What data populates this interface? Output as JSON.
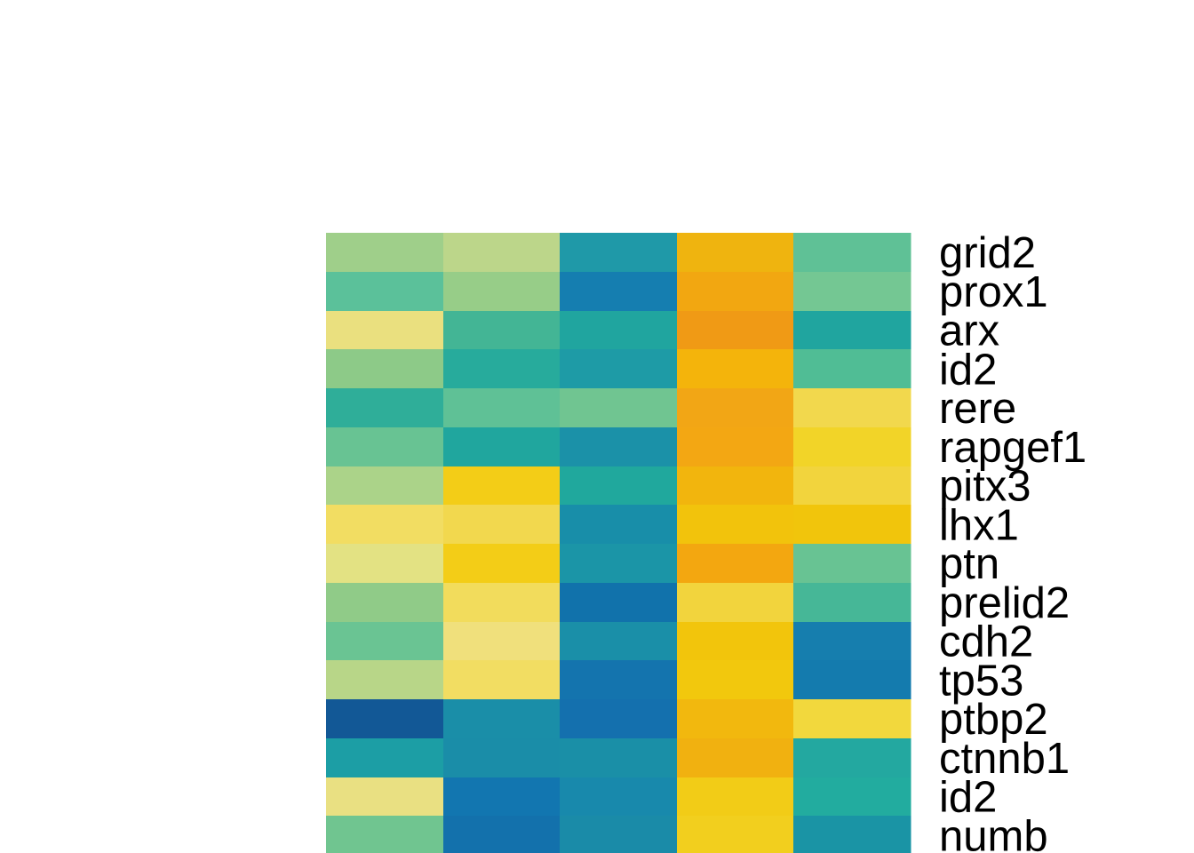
{
  "chart_data": {
    "type": "heatmap",
    "rows": [
      "grid2",
      "prox1",
      "arx",
      "id2",
      "rere",
      "rapgef1",
      "pitx3",
      "lhx1",
      "ptn",
      "prelid2",
      "cdh2",
      "tp53",
      "ptbp2",
      "ctnnb1",
      "id2",
      "numb"
    ],
    "columns": [
      "",
      "",
      "",
      "",
      ""
    ],
    "colors": [
      [
        "#9fcf8a",
        "#bcd68a",
        "#1f99a8",
        "#efb40f",
        "#5fc196"
      ],
      [
        "#5bc19a",
        "#97cd88",
        "#157eb0",
        "#f2a711",
        "#74c793"
      ],
      [
        "#eae07f",
        "#43b595",
        "#20a59f",
        "#f09a15",
        "#20a59f"
      ],
      [
        "#8dca88",
        "#27ab9c",
        "#1e9ba6",
        "#f4b40b",
        "#50bd95"
      ],
      [
        "#2fae99",
        "#5fc196",
        "#70c591",
        "#f2a615",
        "#f2d84d"
      ],
      [
        "#68c393",
        "#20a69e",
        "#1b91a8",
        "#f3a713",
        "#f2d428"
      ],
      [
        "#abd389",
        "#f3cd17",
        "#20a89d",
        "#f2b50d",
        "#f2d43d"
      ],
      [
        "#f2dd62",
        "#f2d84e",
        "#188ea9",
        "#f2c30c",
        "#f1c50c"
      ],
      [
        "#e3e283",
        "#f3cd17",
        "#1b95a7",
        "#f3a710",
        "#68c393"
      ],
      [
        "#90cb88",
        "#f2dc5c",
        "#1172ab",
        "#f2d43d",
        "#46b797"
      ],
      [
        "#6ac493",
        "#f0e07c",
        "#1a8fa8",
        "#f2c50c",
        "#167eae"
      ],
      [
        "#b8d688",
        "#f2dd62",
        "#1474ae",
        "#f2c80d",
        "#147bae"
      ],
      [
        "#125896",
        "#1a8ea8",
        "#1470ae",
        "#f2b80e",
        "#f2d83d"
      ],
      [
        "#1c9ea5",
        "#1a8da8",
        "#1a8fa7",
        "#f1b110",
        "#23a8a0"
      ],
      [
        "#e9e082",
        "#1276b0",
        "#1889ac",
        "#f2cc17",
        "#22ac9f"
      ],
      [
        "#70c590",
        "#1371ac",
        "#1a8ba8",
        "#f2cf1e",
        "#1a94a5"
      ]
    ],
    "grid": false,
    "legend": "none"
  }
}
